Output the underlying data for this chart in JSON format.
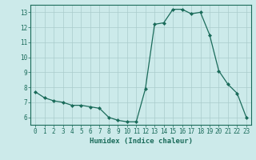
{
  "x": [
    0,
    1,
    2,
    3,
    4,
    5,
    6,
    7,
    8,
    9,
    10,
    11,
    12,
    13,
    14,
    15,
    16,
    17,
    18,
    19,
    20,
    21,
    22,
    23
  ],
  "y": [
    7.7,
    7.3,
    7.1,
    7.0,
    6.8,
    6.8,
    6.7,
    6.6,
    6.0,
    5.8,
    5.7,
    5.7,
    7.9,
    12.2,
    12.3,
    13.2,
    13.2,
    12.9,
    13.0,
    11.5,
    9.1,
    8.2,
    7.6,
    6.0
  ],
  "xlabel": "Humidex (Indice chaleur)",
  "xlim": [
    -0.5,
    23.5
  ],
  "ylim": [
    5.5,
    13.5
  ],
  "yticks": [
    6,
    7,
    8,
    9,
    10,
    11,
    12,
    13
  ],
  "xticks": [
    0,
    1,
    2,
    3,
    4,
    5,
    6,
    7,
    8,
    9,
    10,
    11,
    12,
    13,
    14,
    15,
    16,
    17,
    18,
    19,
    20,
    21,
    22,
    23
  ],
  "line_color": "#1a6b5a",
  "marker": "D",
  "marker_size": 2.0,
  "bg_color": "#cceaea",
  "grid_color": "#aacccc",
  "spine_color": "#1a6b5a",
  "tick_label_color": "#1a6b5a",
  "xlabel_color": "#1a6b5a",
  "font_size_ticks": 5.5,
  "font_size_xlabel": 6.5
}
